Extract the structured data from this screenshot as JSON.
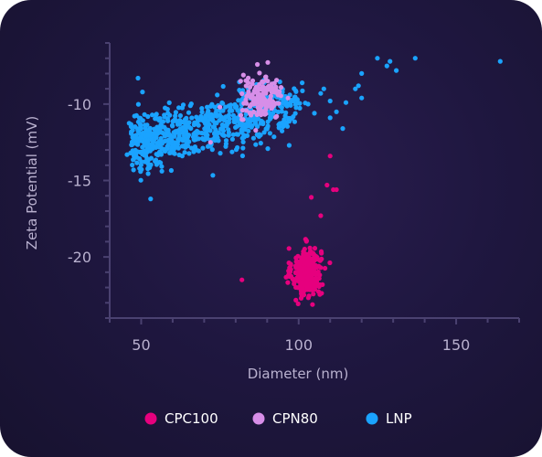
{
  "chart_data": {
    "type": "scatter",
    "title": "",
    "xlabel": "Diameter (nm)",
    "ylabel": "Zeta Potential (mV)",
    "xlim": [
      40,
      170
    ],
    "ylim": [
      -24,
      -6
    ],
    "xticks": [
      50,
      100,
      150
    ],
    "yticks": [
      -10,
      -15,
      -20
    ],
    "x_tick_labels": [
      "50",
      "100",
      "150"
    ],
    "y_tick_labels": [
      "-10",
      "-15",
      "-20"
    ],
    "grid": false,
    "legend_position": "bottom",
    "series": [
      {
        "name": "CPC100",
        "color": "#e6007e",
        "cluster": {
          "n": 330,
          "cx": 102.5,
          "cy": -21.0,
          "sx": 2.3,
          "sy": 0.8
        },
        "outliers": [
          [
            82,
            -21.5
          ],
          [
            104,
            -16.1
          ],
          [
            107,
            -17.3
          ],
          [
            109,
            -15.3
          ],
          [
            110,
            -13.4
          ],
          [
            111,
            -15.6
          ],
          [
            112,
            -15.6
          ]
        ]
      },
      {
        "name": "CPN80",
        "color": "#d78ee8",
        "cluster": {
          "n": 150,
          "cx": 88.0,
          "cy": -9.6,
          "sx": 3.3,
          "sy": 0.7
        },
        "outliers": [
          [
            75,
            -10.2
          ],
          [
            72,
            -12.5
          ],
          [
            82,
            -11.0
          ],
          [
            84,
            -8.6
          ]
        ]
      },
      {
        "name": "LNP",
        "color": "#1aa3ff",
        "band": {
          "n": 720,
          "x0": 48,
          "x1": 100,
          "y0": -12.6,
          "y1": -10.0,
          "spread": 0.9
        },
        "outliers": [
          [
            49,
            -8.3
          ],
          [
            53,
            -16.2
          ],
          [
            97,
            -12.7
          ],
          [
            114,
            -11.6
          ],
          [
            118,
            -9.0
          ],
          [
            119,
            -8.8
          ],
          [
            120,
            -9.6
          ],
          [
            120,
            -8.0
          ],
          [
            125,
            -7.0
          ],
          [
            128,
            -7.5
          ],
          [
            129,
            -7.2
          ],
          [
            131,
            -7.8
          ],
          [
            137,
            -7.0
          ],
          [
            164,
            -7.2
          ],
          [
            110,
            -9.8
          ],
          [
            107,
            -9.3
          ],
          [
            103,
            -10.0
          ],
          [
            112,
            -10.5
          ],
          [
            115,
            -9.9
          ],
          [
            110,
            -10.9
          ],
          [
            105,
            -10.6
          ],
          [
            108,
            -9.0
          ]
        ]
      }
    ]
  }
}
